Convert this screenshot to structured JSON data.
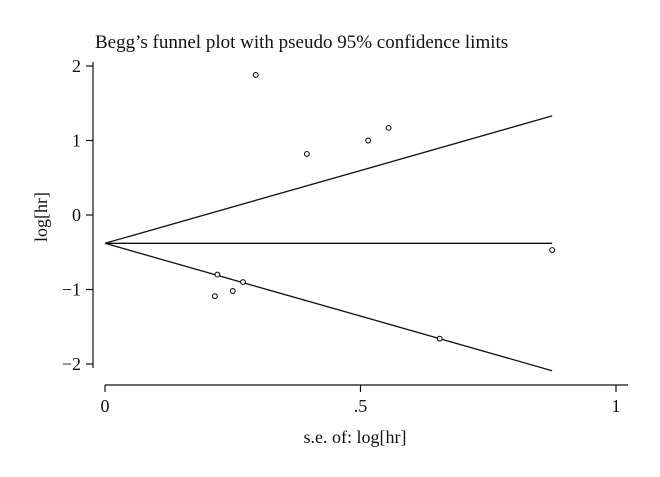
{
  "chart_data": {
    "type": "scatter",
    "title": "Begg’s funnel plot with pseudo 95% confidence limits",
    "xlabel": "s.e. of: log[hr]",
    "ylabel": "log[hr]",
    "xlim": [
      0,
      1
    ],
    "ylim": [
      -2,
      2
    ],
    "x_ticks": [
      {
        "value": 0,
        "label": "0"
      },
      {
        "value": 0.5,
        "label": ".5"
      },
      {
        "value": 1,
        "label": "1"
      }
    ],
    "y_ticks": [
      {
        "value": 2,
        "label": "2"
      },
      {
        "value": 1,
        "label": "1"
      },
      {
        "value": 0,
        "label": "0"
      },
      {
        "value": -1,
        "label": "−1"
      },
      {
        "value": -2,
        "label": "−2"
      }
    ],
    "pooled_estimate": -0.38,
    "funnel_max_se": 0.875,
    "funnel_limits": {
      "upper_end": 1.33,
      "lower_end": -2.09
    },
    "points": [
      {
        "x": 0.295,
        "y": 1.88
      },
      {
        "x": 0.395,
        "y": 0.82
      },
      {
        "x": 0.515,
        "y": 1.0
      },
      {
        "x": 0.555,
        "y": 1.17
      },
      {
        "x": 0.875,
        "y": -0.47
      },
      {
        "x": 0.22,
        "y": -0.8
      },
      {
        "x": 0.215,
        "y": -1.09
      },
      {
        "x": 0.25,
        "y": -1.02
      },
      {
        "x": 0.27,
        "y": -0.9
      },
      {
        "x": 0.655,
        "y": -1.66
      }
    ],
    "grid": false,
    "legend": "none"
  }
}
